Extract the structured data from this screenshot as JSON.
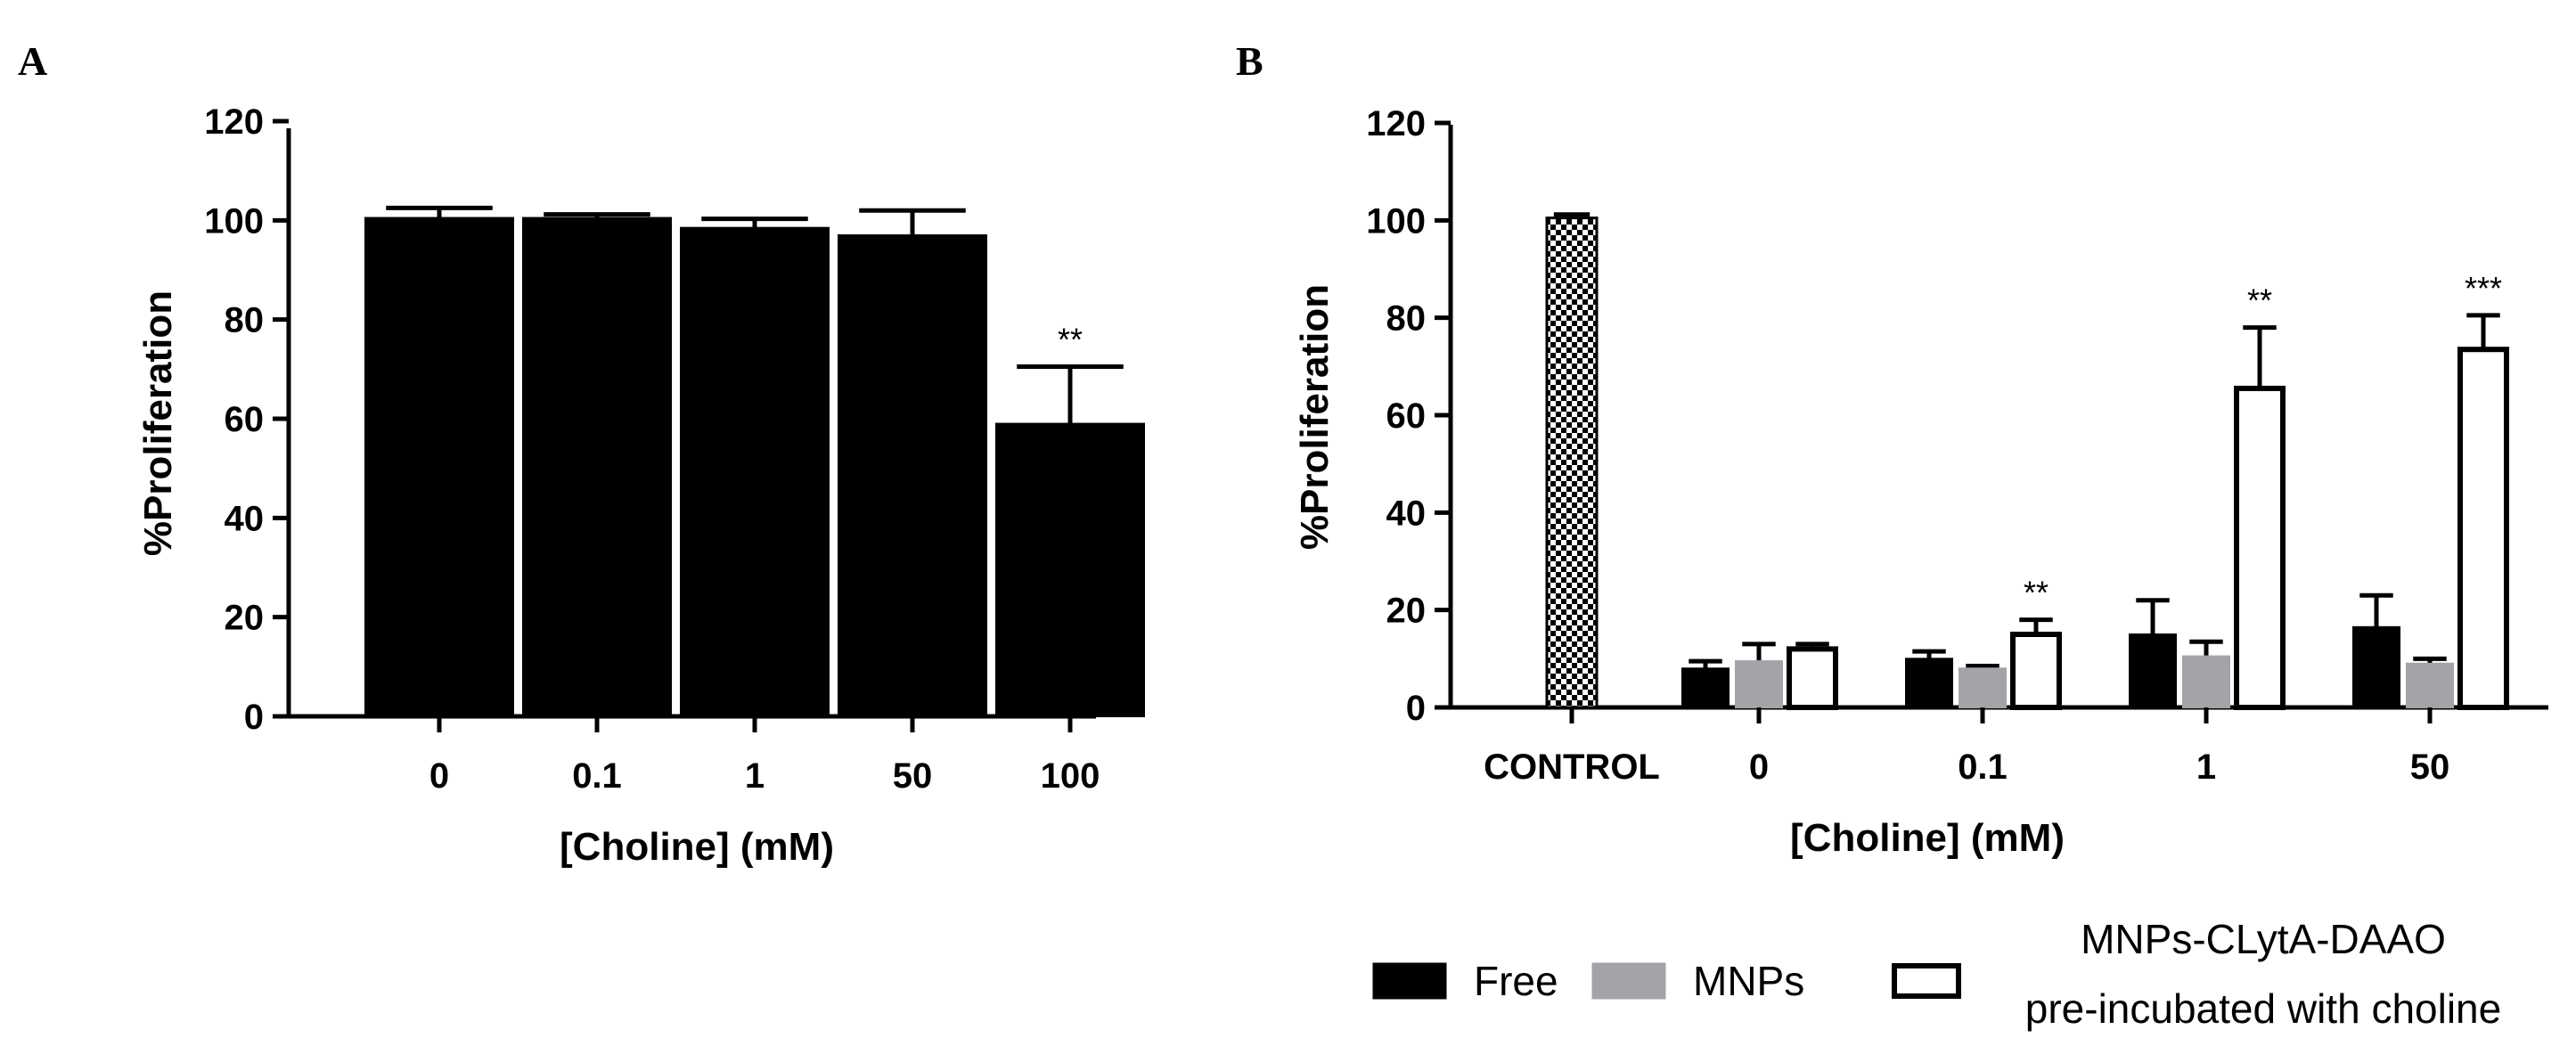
{
  "chart_data": [
    {
      "panel": "A",
      "type": "bar",
      "title": "",
      "xlabel": "[Choline] (mM)",
      "ylabel": "%Proliferation",
      "ylim": [
        0,
        120
      ],
      "yticks": [
        0,
        20,
        40,
        60,
        80,
        100,
        120
      ],
      "categories": [
        "0",
        "0.1",
        "1",
        "50",
        "100"
      ],
      "series": [
        {
          "name": "Free",
          "color": "#000000",
          "values": [
            100.5,
            100.5,
            98.5,
            97,
            59
          ],
          "errors": [
            2,
            0.7,
            1.8,
            5,
            11.5
          ],
          "annotations": [
            "",
            "",
            "",
            "",
            "**"
          ]
        }
      ]
    },
    {
      "panel": "B",
      "type": "bar",
      "title": "",
      "xlabel": "[Choline] (mM)",
      "ylabel": "%Proliferation",
      "ylim": [
        0,
        120
      ],
      "yticks": [
        0,
        20,
        40,
        60,
        80,
        100,
        120
      ],
      "control": {
        "label": "CONTROL",
        "value": 100.5,
        "error": 0.7,
        "pattern": "checker"
      },
      "categories": [
        "0",
        "0.1",
        "1",
        "50"
      ],
      "series": [
        {
          "name": "Free",
          "color": "#000000",
          "values": [
            8,
            10,
            15,
            16.5
          ],
          "errors": [
            1.5,
            1.5,
            7,
            6.5
          ],
          "annotations": [
            "",
            "",
            "",
            ""
          ]
        },
        {
          "name": "MNPs",
          "color": "#a3a3a8",
          "values": [
            9.5,
            8,
            10.5,
            9
          ],
          "errors": [
            3.5,
            0.5,
            3,
            1
          ],
          "annotations": [
            "",
            "",
            "",
            ""
          ]
        },
        {
          "name": "MNPs-CLytA-DAAO pre-incubated with choline",
          "color": "#ffffff",
          "values": [
            12,
            15,
            65.5,
            73.5
          ],
          "errors": [
            1,
            3,
            12.5,
            7
          ],
          "annotations": [
            "",
            "**",
            "**",
            "***"
          ]
        }
      ]
    }
  ],
  "legend": {
    "items": [
      {
        "label": "Free",
        "color": "#000000"
      },
      {
        "label": "MNPs",
        "color": "#a3a3a8"
      },
      {
        "label_line1": "MNPs-CLytA-DAAO",
        "label_line2": "pre-incubated with choline",
        "color": "#ffffff"
      }
    ]
  }
}
